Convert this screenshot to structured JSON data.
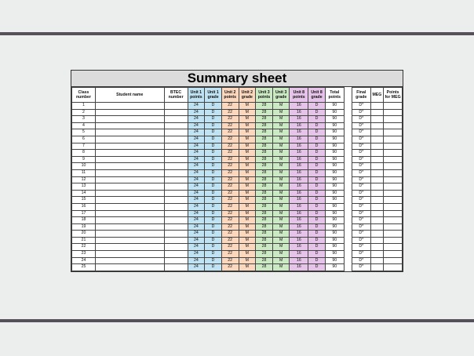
{
  "title": "Summary sheet",
  "headers": {
    "class_number": "Class number",
    "student_name": "Student name",
    "btec_number": "BTEC number",
    "unit1_points": "Unit 1 points",
    "unit1_grade": "Unit 1 grade",
    "unit2_points": "Unit 2 points",
    "unit2_grade": "Unit 2 grade",
    "unit3_points": "Unit 3 points",
    "unit3_grade": "Unit 3 grade",
    "unit8_points": "Unit 8 points",
    "unit8_grade": "Unit 8 grade",
    "total_points": "Total points",
    "final_grade": "Final grade",
    "meg": "MEG",
    "points_for_meg": "Points for MEG"
  },
  "colors": {
    "unit1": "#bfe3f3",
    "unit2": "#fbd7be",
    "unit3": "#cbeac3",
    "unit8": "#e6c3e8"
  },
  "rows": [
    {
      "class_number": "1",
      "student_name": "",
      "btec_number": "",
      "u1p": "24",
      "u1g": "D",
      "u2p": "22",
      "u2g": "M",
      "u3p": "28",
      "u3g": "M",
      "u8p": "16",
      "u8g": "D",
      "total": "90",
      "final": "D*",
      "meg": "",
      "pmeg": ""
    },
    {
      "class_number": "2",
      "student_name": "",
      "btec_number": "",
      "u1p": "24",
      "u1g": "D",
      "u2p": "22",
      "u2g": "M",
      "u3p": "28",
      "u3g": "M",
      "u8p": "16",
      "u8g": "D",
      "total": "90",
      "final": "D*",
      "meg": "",
      "pmeg": ""
    },
    {
      "class_number": "3",
      "student_name": "",
      "btec_number": "",
      "u1p": "24",
      "u1g": "D",
      "u2p": "22",
      "u2g": "M",
      "u3p": "28",
      "u3g": "M",
      "u8p": "16",
      "u8g": "D",
      "total": "90",
      "final": "D*",
      "meg": "",
      "pmeg": ""
    },
    {
      "class_number": "4",
      "student_name": "",
      "btec_number": "",
      "u1p": "24",
      "u1g": "D",
      "u2p": "22",
      "u2g": "M",
      "u3p": "28",
      "u3g": "M",
      "u8p": "16",
      "u8g": "D",
      "total": "90",
      "final": "D*",
      "meg": "",
      "pmeg": ""
    },
    {
      "class_number": "5",
      "student_name": "",
      "btec_number": "",
      "u1p": "24",
      "u1g": "D",
      "u2p": "22",
      "u2g": "M",
      "u3p": "28",
      "u3g": "M",
      "u8p": "16",
      "u8g": "D",
      "total": "90",
      "final": "D*",
      "meg": "",
      "pmeg": ""
    },
    {
      "class_number": "6",
      "student_name": "",
      "btec_number": "",
      "u1p": "24",
      "u1g": "D",
      "u2p": "22",
      "u2g": "M",
      "u3p": "28",
      "u3g": "M",
      "u8p": "16",
      "u8g": "D",
      "total": "90",
      "final": "D*",
      "meg": "",
      "pmeg": ""
    },
    {
      "class_number": "7",
      "student_name": "",
      "btec_number": "",
      "u1p": "24",
      "u1g": "D",
      "u2p": "22",
      "u2g": "M",
      "u3p": "28",
      "u3g": "M",
      "u8p": "16",
      "u8g": "D",
      "total": "90",
      "final": "D*",
      "meg": "",
      "pmeg": ""
    },
    {
      "class_number": "8",
      "student_name": "",
      "btec_number": "",
      "u1p": "24",
      "u1g": "D",
      "u2p": "22",
      "u2g": "M",
      "u3p": "28",
      "u3g": "M",
      "u8p": "16",
      "u8g": "D",
      "total": "90",
      "final": "D*",
      "meg": "",
      "pmeg": ""
    },
    {
      "class_number": "9",
      "student_name": "",
      "btec_number": "",
      "u1p": "24",
      "u1g": "D",
      "u2p": "22",
      "u2g": "M",
      "u3p": "28",
      "u3g": "M",
      "u8p": "16",
      "u8g": "D",
      "total": "90",
      "final": "D*",
      "meg": "",
      "pmeg": ""
    },
    {
      "class_number": "10",
      "student_name": "",
      "btec_number": "",
      "u1p": "24",
      "u1g": "D",
      "u2p": "22",
      "u2g": "M",
      "u3p": "28",
      "u3g": "M",
      "u8p": "16",
      "u8g": "D",
      "total": "90",
      "final": "D*",
      "meg": "",
      "pmeg": ""
    },
    {
      "class_number": "11",
      "student_name": "",
      "btec_number": "",
      "u1p": "24",
      "u1g": "D",
      "u2p": "22",
      "u2g": "M",
      "u3p": "28",
      "u3g": "M",
      "u8p": "16",
      "u8g": "D",
      "total": "90",
      "final": "D*",
      "meg": "",
      "pmeg": ""
    },
    {
      "class_number": "12",
      "student_name": "",
      "btec_number": "",
      "u1p": "24",
      "u1g": "D",
      "u2p": "22",
      "u2g": "M",
      "u3p": "28",
      "u3g": "M",
      "u8p": "16",
      "u8g": "D",
      "total": "90",
      "final": "D*",
      "meg": "",
      "pmeg": ""
    },
    {
      "class_number": "13",
      "student_name": "",
      "btec_number": "",
      "u1p": "24",
      "u1g": "D",
      "u2p": "22",
      "u2g": "M",
      "u3p": "28",
      "u3g": "M",
      "u8p": "16",
      "u8g": "D",
      "total": "90",
      "final": "D*",
      "meg": "",
      "pmeg": ""
    },
    {
      "class_number": "14",
      "student_name": "",
      "btec_number": "",
      "u1p": "24",
      "u1g": "D",
      "u2p": "22",
      "u2g": "M",
      "u3p": "28",
      "u3g": "M",
      "u8p": "16",
      "u8g": "D",
      "total": "90",
      "final": "D*",
      "meg": "",
      "pmeg": ""
    },
    {
      "class_number": "15",
      "student_name": "",
      "btec_number": "",
      "u1p": "24",
      "u1g": "D",
      "u2p": "22",
      "u2g": "M",
      "u3p": "28",
      "u3g": "M",
      "u8p": "16",
      "u8g": "D",
      "total": "90",
      "final": "D*",
      "meg": "",
      "pmeg": ""
    },
    {
      "class_number": "16",
      "student_name": "",
      "btec_number": "",
      "u1p": "24",
      "u1g": "D",
      "u2p": "22",
      "u2g": "M",
      "u3p": "28",
      "u3g": "M",
      "u8p": "16",
      "u8g": "D",
      "total": "90",
      "final": "D*",
      "meg": "",
      "pmeg": ""
    },
    {
      "class_number": "17",
      "student_name": "",
      "btec_number": "",
      "u1p": "24",
      "u1g": "D",
      "u2p": "22",
      "u2g": "M",
      "u3p": "28",
      "u3g": "M",
      "u8p": "16",
      "u8g": "D",
      "total": "90",
      "final": "D*",
      "meg": "",
      "pmeg": ""
    },
    {
      "class_number": "18",
      "student_name": "",
      "btec_number": "",
      "u1p": "24",
      "u1g": "D",
      "u2p": "22",
      "u2g": "M",
      "u3p": "28",
      "u3g": "M",
      "u8p": "16",
      "u8g": "D",
      "total": "90",
      "final": "D*",
      "meg": "",
      "pmeg": ""
    },
    {
      "class_number": "19",
      "student_name": "",
      "btec_number": "",
      "u1p": "24",
      "u1g": "D",
      "u2p": "22",
      "u2g": "M",
      "u3p": "28",
      "u3g": "M",
      "u8p": "16",
      "u8g": "D",
      "total": "90",
      "final": "D*",
      "meg": "",
      "pmeg": ""
    },
    {
      "class_number": "20",
      "student_name": "",
      "btec_number": "",
      "u1p": "24",
      "u1g": "D",
      "u2p": "22",
      "u2g": "M",
      "u3p": "28",
      "u3g": "M",
      "u8p": "16",
      "u8g": "D",
      "total": "90",
      "final": "D*",
      "meg": "",
      "pmeg": ""
    },
    {
      "class_number": "21",
      "student_name": "",
      "btec_number": "",
      "u1p": "24",
      "u1g": "D",
      "u2p": "22",
      "u2g": "M",
      "u3p": "28",
      "u3g": "M",
      "u8p": "16",
      "u8g": "D",
      "total": "90",
      "final": "D*",
      "meg": "",
      "pmeg": ""
    },
    {
      "class_number": "22",
      "student_name": "",
      "btec_number": "",
      "u1p": "24",
      "u1g": "D",
      "u2p": "22",
      "u2g": "M",
      "u3p": "28",
      "u3g": "M",
      "u8p": "16",
      "u8g": "D",
      "total": "90",
      "final": "D*",
      "meg": "",
      "pmeg": ""
    },
    {
      "class_number": "23",
      "student_name": "",
      "btec_number": "",
      "u1p": "24",
      "u1g": "D",
      "u2p": "22",
      "u2g": "M",
      "u3p": "28",
      "u3g": "M",
      "u8p": "16",
      "u8g": "D",
      "total": "90",
      "final": "D*",
      "meg": "",
      "pmeg": ""
    },
    {
      "class_number": "24",
      "student_name": "",
      "btec_number": "",
      "u1p": "24",
      "u1g": "D",
      "u2p": "22",
      "u2g": "M",
      "u3p": "28",
      "u3g": "M",
      "u8p": "16",
      "u8g": "D",
      "total": "90",
      "final": "D*",
      "meg": "",
      "pmeg": ""
    },
    {
      "class_number": "25",
      "student_name": "",
      "btec_number": "",
      "u1p": "24",
      "u1g": "D",
      "u2p": "22",
      "u2g": "M",
      "u3p": "28",
      "u3g": "M",
      "u8p": "16",
      "u8g": "D",
      "total": "90",
      "final": "D*",
      "meg": "",
      "pmeg": ""
    }
  ]
}
